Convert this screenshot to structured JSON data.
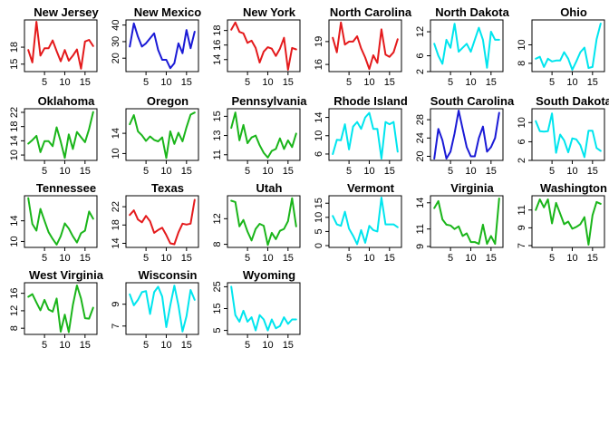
{
  "colors": {
    "red": "#e41a1c",
    "blue": "#1a1ad6",
    "cyan": "#00e5ee",
    "green": "#1ab51a"
  },
  "chart_data": {
    "type": "line",
    "layout": {
      "columns": 6,
      "rows": 4
    },
    "panels": [
      {
        "title": "New Jersey",
        "color": "red",
        "x": [
          1,
          2,
          3,
          4,
          5,
          6,
          7,
          8,
          9,
          10,
          11,
          12,
          13,
          14,
          15,
          16,
          17
        ],
        "values": [
          17.5,
          15.3,
          22.5,
          16.5,
          17.8,
          17.8,
          19.2,
          17.3,
          15.5,
          17.5,
          15.6,
          16.5,
          17.6,
          14.2,
          19,
          19.3,
          18.2
        ],
        "xlim": [
          0.5,
          17.5
        ],
        "ylim": [
          14,
          22.5
        ],
        "yticks": [
          15,
          18
        ],
        "xticks": [
          5,
          10,
          15
        ]
      },
      {
        "title": "New Mexico",
        "color": "blue",
        "x": [
          1,
          2,
          3,
          4,
          5,
          6,
          7,
          8,
          9,
          10,
          11,
          12,
          13,
          14,
          15,
          16,
          17
        ],
        "values": [
          27,
          41,
          33,
          27,
          29,
          32,
          35,
          25,
          19,
          19,
          14,
          17,
          29,
          23,
          37,
          26,
          36
        ],
        "xlim": [
          0.5,
          17.5
        ],
        "ylim": [
          13,
          42
        ],
        "yticks": [
          20,
          30,
          40
        ],
        "xticks": [
          5,
          10,
          15
        ]
      },
      {
        "title": "New York",
        "color": "red",
        "x": [
          1,
          2,
          3,
          4,
          5,
          6,
          7,
          8,
          9,
          10,
          11,
          12,
          13,
          14,
          15,
          16,
          17
        ],
        "values": [
          18.1,
          19.1,
          17.8,
          17.6,
          16.3,
          16.6,
          15.6,
          13.6,
          15.1,
          15.7,
          15.5,
          14.5,
          15.5,
          17,
          12.6,
          15.6,
          15.4
        ],
        "xlim": [
          0.5,
          17.5
        ],
        "ylim": [
          12.6,
          19.2
        ],
        "yticks": [
          14,
          16,
          18
        ],
        "xticks": [
          5,
          10,
          15
        ]
      },
      {
        "title": "North Carolina",
        "color": "red",
        "x": [
          1,
          2,
          3,
          4,
          5,
          6,
          7,
          8,
          9,
          10,
          11,
          12,
          13,
          14,
          15,
          16,
          17
        ],
        "values": [
          19.5,
          17.6,
          21.5,
          18.6,
          19,
          19,
          19.7,
          18.1,
          16.9,
          15.4,
          17.2,
          16.2,
          20.6,
          17.3,
          17,
          17.6,
          19.3
        ],
        "xlim": [
          0.5,
          17.5
        ],
        "ylim": [
          15.3,
          21.6
        ],
        "yticks": [
          16,
          19
        ],
        "xticks": [
          5,
          10,
          15
        ]
      },
      {
        "title": "North Dakota",
        "color": "cyan",
        "x": [
          1,
          2,
          3,
          4,
          5,
          6,
          7,
          8,
          9,
          10,
          11,
          12,
          13,
          14,
          15,
          16,
          17
        ],
        "values": [
          9,
          6,
          4,
          10,
          8,
          14,
          7,
          8,
          9,
          7,
          10,
          13,
          10,
          3,
          12,
          10,
          10
        ],
        "xlim": [
          0.5,
          17.5
        ],
        "ylim": [
          2.5,
          14.5
        ],
        "yticks": [
          2,
          6,
          12
        ],
        "xticks": [
          5,
          10,
          15
        ]
      },
      {
        "title": "Ohio",
        "color": "cyan",
        "x": [
          1,
          2,
          3,
          4,
          5,
          6,
          7,
          8,
          9,
          10,
          11,
          12,
          13,
          14,
          15,
          16,
          17
        ],
        "values": [
          8.5,
          8.7,
          7.6,
          8.5,
          8.2,
          8.3,
          8.3,
          9.2,
          8.5,
          7.3,
          8.2,
          9.2,
          9.7,
          7.5,
          7.6,
          10.6,
          12.3
        ],
        "xlim": [
          0.5,
          17.5
        ],
        "ylim": [
          7.3,
          12.5
        ],
        "yticks": [
          8,
          10
        ],
        "xticks": [
          5,
          10,
          15
        ]
      },
      {
        "title": "Oklahoma",
        "color": "green",
        "x": [
          1,
          2,
          3,
          4,
          5,
          6,
          7,
          8,
          9,
          10,
          11,
          12,
          13,
          14,
          15,
          16,
          17
        ],
        "values": [
          13.2,
          14.2,
          15.4,
          10.8,
          13.9,
          13.9,
          12.5,
          17.8,
          13.8,
          9.2,
          15.8,
          11.7,
          16.5,
          15,
          13.6,
          17.3,
          22.1
        ],
        "xlim": [
          0.5,
          17.5
        ],
        "ylim": [
          9,
          22.5
        ],
        "yticks": [
          10,
          14,
          18,
          22
        ],
        "xticks": [
          5,
          10,
          15
        ]
      },
      {
        "title": "Oregon",
        "color": "green",
        "x": [
          1,
          2,
          3,
          4,
          5,
          6,
          7,
          8,
          9,
          10,
          11,
          12,
          13,
          14,
          15,
          16,
          17
        ],
        "values": [
          15.8,
          17.6,
          14.4,
          13.6,
          12.5,
          13.4,
          12.7,
          12.4,
          13.2,
          9.1,
          14.4,
          11.9,
          14.1,
          12.4,
          15.2,
          17.7,
          18.1
        ],
        "xlim": [
          0.5,
          17.5
        ],
        "ylim": [
          9,
          18.5
        ],
        "yticks": [
          10,
          14
        ],
        "xticks": [
          5,
          10,
          15
        ]
      },
      {
        "title": "Pennsylvania",
        "color": "green",
        "x": [
          1,
          2,
          3,
          4,
          5,
          6,
          7,
          8,
          9,
          10,
          11,
          12,
          13,
          14,
          15,
          16,
          17
        ],
        "values": [
          13.8,
          15.4,
          12.5,
          14.1,
          12.2,
          12.8,
          13,
          12,
          11.2,
          10.7,
          11.4,
          11.6,
          12.7,
          11.6,
          12.5,
          11.8,
          13.2
        ],
        "xlim": [
          0.5,
          17.5
        ],
        "ylim": [
          10.6,
          15.6
        ],
        "yticks": [
          11,
          13,
          15
        ],
        "xticks": [
          5,
          10,
          15
        ]
      },
      {
        "title": "Rhode Island",
        "color": "cyan",
        "x": [
          1,
          2,
          3,
          4,
          5,
          6,
          7,
          8,
          9,
          10,
          11,
          12,
          13,
          14,
          15,
          16,
          17
        ],
        "values": [
          6,
          9.1,
          9,
          12.5,
          7,
          12,
          13,
          11.5,
          14,
          15,
          11.5,
          11.5,
          5,
          13,
          12.5,
          13,
          6.5
        ],
        "xlim": [
          0.5,
          17.5
        ],
        "ylim": [
          5,
          15.5
        ],
        "yticks": [
          6,
          10,
          14
        ],
        "xticks": [
          5,
          10,
          15
        ]
      },
      {
        "title": "South Carolina",
        "color": "blue",
        "x": [
          1,
          2,
          3,
          4,
          5,
          6,
          7,
          8,
          9,
          10,
          11,
          12,
          13,
          14,
          15,
          16,
          17
        ],
        "values": [
          19.5,
          26,
          23.5,
          19.5,
          21,
          25,
          30,
          26,
          22,
          20,
          20,
          24,
          26.5,
          21,
          22,
          24,
          29.5
        ],
        "xlim": [
          0.5,
          17.5
        ],
        "ylim": [
          19.5,
          30
        ],
        "yticks": [
          20,
          24,
          28
        ],
        "xticks": [
          5,
          10,
          15
        ]
      },
      {
        "title": "South Dakota",
        "color": "cyan",
        "x": [
          1,
          2,
          3,
          4,
          5,
          6,
          7,
          8,
          9,
          10,
          11,
          12,
          13,
          14,
          15,
          16,
          17
        ],
        "values": [
          10.3,
          8.2,
          8.1,
          8.2,
          11.9,
          3.7,
          7.5,
          6.3,
          3.8,
          6.7,
          6.5,
          5.3,
          2.8,
          8.3,
          8.3,
          4.7,
          4.1
        ],
        "xlim": [
          0.5,
          17.5
        ],
        "ylim": [
          2.5,
          12.5
        ],
        "yticks": [
          2,
          6,
          10
        ],
        "xticks": [
          5,
          10,
          15
        ]
      },
      {
        "title": "Tennessee",
        "color": "green",
        "x": [
          1,
          2,
          3,
          4,
          5,
          6,
          7,
          8,
          9,
          10,
          11,
          12,
          13,
          14,
          15,
          16,
          17
        ],
        "values": [
          18.4,
          13.4,
          12.1,
          16.3,
          14,
          11.8,
          10.5,
          9.4,
          11,
          13.5,
          12.5,
          11,
          9.8,
          11.6,
          12.1,
          15.8,
          14.4
        ],
        "xlim": [
          0.5,
          17.5
        ],
        "ylim": [
          9.2,
          18.5
        ],
        "yticks": [
          10,
          14
        ],
        "xticks": [
          5,
          10,
          15
        ]
      },
      {
        "title": "Texas",
        "color": "red",
        "x": [
          1,
          2,
          3,
          4,
          5,
          6,
          7,
          8,
          9,
          10,
          11,
          12,
          13,
          14,
          15,
          16,
          17
        ],
        "values": [
          20.2,
          21.2,
          19.2,
          18.6,
          20,
          18.8,
          16.3,
          16.9,
          17.4,
          15.8,
          14,
          13.8,
          16.4,
          18.3,
          18.1,
          18.3,
          23.5
        ],
        "xlim": [
          0.5,
          17.5
        ],
        "ylim": [
          13.5,
          24
        ],
        "yticks": [
          14,
          18,
          22
        ],
        "xticks": [
          5,
          10,
          15
        ]
      },
      {
        "title": "Utah",
        "color": "green",
        "x": [
          1,
          2,
          3,
          4,
          5,
          6,
          7,
          8,
          9,
          10,
          11,
          12,
          13,
          14,
          15,
          16,
          17
        ],
        "values": [
          14.8,
          14.6,
          10.8,
          11.8,
          10,
          8.6,
          10.4,
          11.2,
          10.9,
          7.9,
          9.8,
          8.8,
          10.1,
          10.4,
          11.6,
          15.2,
          10.8
        ],
        "xlim": [
          0.5,
          17.5
        ],
        "ylim": [
          7.8,
          15.3
        ],
        "yticks": [
          8,
          12
        ],
        "xticks": [
          5,
          10,
          15
        ]
      },
      {
        "title": "Vermont",
        "color": "cyan",
        "x": [
          1,
          2,
          3,
          4,
          5,
          6,
          7,
          8,
          9,
          10,
          11,
          12,
          13,
          14,
          15,
          16,
          17
        ],
        "values": [
          10.5,
          7.5,
          7,
          12,
          6,
          3.5,
          0.5,
          5.5,
          1,
          7,
          5.5,
          5,
          17,
          7.5,
          7.5,
          7.5,
          6.5
        ],
        "xlim": [
          0.5,
          17.5
        ],
        "ylim": [
          0,
          17
        ],
        "yticks": [
          0,
          5,
          10,
          15
        ],
        "xticks": [
          5,
          10,
          15
        ]
      },
      {
        "title": "Virginia",
        "color": "green",
        "x": [
          1,
          2,
          3,
          4,
          5,
          6,
          7,
          8,
          9,
          10,
          11,
          12,
          13,
          14,
          15,
          16,
          17
        ],
        "values": [
          13.4,
          14.2,
          12.1,
          11.5,
          11.4,
          11,
          11.3,
          10.2,
          10.5,
          9.5,
          9.5,
          9.3,
          11.5,
          9.3,
          10.2,
          9.3,
          14.5
        ],
        "xlim": [
          0.5,
          17.5
        ],
        "ylim": [
          9.1,
          14.6
        ],
        "yticks": [
          9,
          11,
          14
        ],
        "xticks": [
          5,
          10,
          15
        ]
      },
      {
        "title": "Washington",
        "color": "green",
        "x": [
          1,
          2,
          3,
          4,
          5,
          6,
          7,
          8,
          9,
          10,
          11,
          12,
          13,
          14,
          15,
          16,
          17
        ],
        "values": [
          11,
          12.2,
          11.3,
          12.2,
          9.5,
          11.8,
          10.6,
          9.4,
          9.7,
          8.9,
          9.1,
          9.4,
          10.2,
          7.1,
          10.4,
          11.9,
          11.7
        ],
        "xlim": [
          0.5,
          17.5
        ],
        "ylim": [
          7,
          12.4
        ],
        "yticks": [
          7,
          9,
          11
        ],
        "xticks": [
          5,
          10,
          15
        ]
      },
      {
        "title": "West Virginia",
        "color": "green",
        "x": [
          1,
          2,
          3,
          4,
          5,
          6,
          7,
          8,
          9,
          10,
          11,
          12,
          13,
          14,
          15,
          16,
          17
        ],
        "values": [
          15.2,
          15.8,
          13.9,
          12.1,
          14.5,
          12.3,
          11.8,
          14.8,
          7.2,
          11.1,
          7.1,
          13.3,
          17.8,
          14.8,
          10.3,
          10.2,
          12.7
        ],
        "xlim": [
          0.5,
          17.5
        ],
        "ylim": [
          7,
          18
        ],
        "yticks": [
          8,
          12,
          16
        ],
        "xticks": [
          5,
          10,
          15
        ]
      },
      {
        "title": "Wisconsin",
        "color": "cyan",
        "x": [
          1,
          2,
          3,
          4,
          5,
          6,
          7,
          8,
          9,
          10,
          11,
          12,
          13,
          14,
          15,
          16,
          17
        ],
        "values": [
          9.9,
          8.9,
          9.4,
          10.1,
          10.2,
          8.1,
          10.1,
          10.6,
          9.7,
          6.9,
          8.9,
          10.7,
          8.9,
          6.5,
          7.9,
          10.3,
          9.4
        ],
        "xlim": [
          0.5,
          17.5
        ],
        "ylim": [
          6.4,
          10.8
        ],
        "yticks": [
          7,
          9
        ],
        "xticks": [
          5,
          10,
          15
        ]
      },
      {
        "title": "Wyoming",
        "color": "cyan",
        "x": [
          1,
          2,
          3,
          4,
          5,
          6,
          7,
          8,
          9,
          10,
          11,
          12,
          13,
          14,
          15,
          16,
          17
        ],
        "values": [
          25,
          12,
          9,
          14,
          9,
          11,
          5,
          12,
          10,
          5,
          10,
          6,
          7,
          11,
          8,
          10,
          10
        ],
        "xlim": [
          0.5,
          17.5
        ],
        "ylim": [
          4,
          26
        ],
        "yticks": [
          5,
          15,
          25
        ],
        "xticks": [
          5,
          10,
          15
        ]
      }
    ]
  }
}
